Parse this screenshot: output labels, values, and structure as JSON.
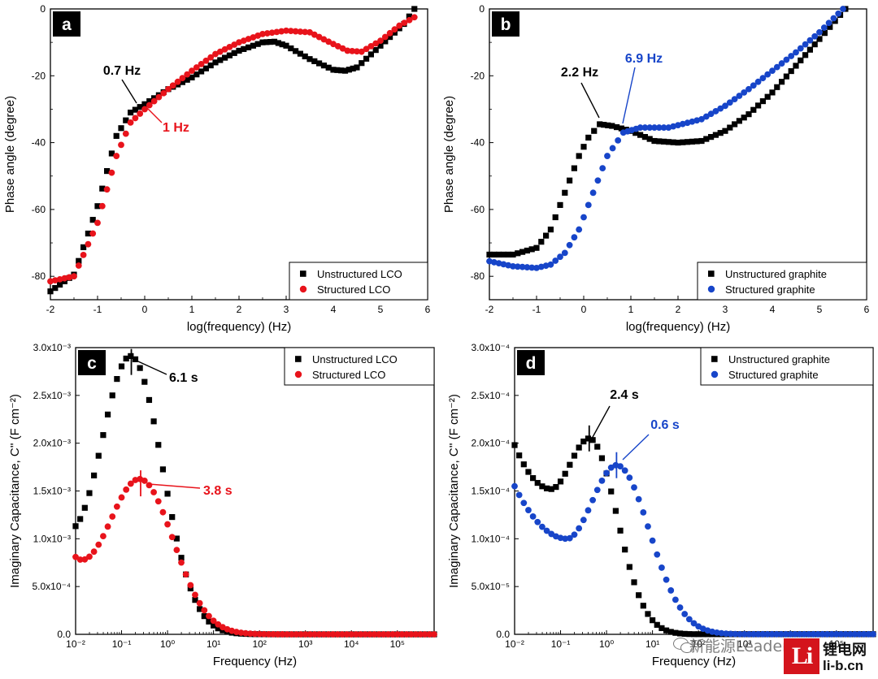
{
  "colors": {
    "black": "#000000",
    "red": "#e8131b",
    "blue": "#1745c9",
    "watermark_red": "#d4141c"
  },
  "chart_data": [
    {
      "panel": "a",
      "type": "scatter",
      "xlabel": "log(frequency) (Hz)",
      "ylabel": "Phase angle (degree)",
      "xlim": [
        -2,
        6
      ],
      "ylim": [
        -87,
        0
      ],
      "xticks": [
        -2,
        -1,
        0,
        1,
        2,
        3,
        4,
        5,
        6
      ],
      "xtick_labels": [
        "-2",
        "-1",
        "0",
        "1",
        "2",
        "3",
        "4",
        "5",
        "6"
      ],
      "yticks": [
        0,
        -20,
        -40,
        -60,
        -80
      ],
      "ytick_labels": [
        "0",
        "-20",
        "-40",
        "-60",
        "-80"
      ],
      "legend_position": "bottom-right",
      "series": [
        {
          "name": "Unstructured LCO",
          "marker": "square",
          "color": "black",
          "points": [
            [
              -2,
              -84.5
            ],
            [
              -1.5,
              -79.5
            ],
            [
              -1,
              -59
            ],
            [
              -0.6,
              -38
            ],
            [
              -0.3,
              -31
            ],
            [
              0,
              -28.5
            ],
            [
              0.5,
              -24
            ],
            [
              1,
              -20.5
            ],
            [
              1.5,
              -16
            ],
            [
              2,
              -12.5
            ],
            [
              2.5,
              -10
            ],
            [
              2.75,
              -9.8
            ],
            [
              3,
              -11
            ],
            [
              3.5,
              -15
            ],
            [
              4,
              -18.2
            ],
            [
              4.25,
              -18.5
            ],
            [
              4.5,
              -17.5
            ],
            [
              5,
              -11
            ],
            [
              5.5,
              -4.5
            ],
            [
              5.72,
              0
            ]
          ]
        },
        {
          "name": "Structured LCO",
          "marker": "circle",
          "color": "red",
          "points": [
            [
              -2,
              -81.5
            ],
            [
              -1.5,
              -80
            ],
            [
              -1,
              -64
            ],
            [
              -0.6,
              -44
            ],
            [
              -0.3,
              -34
            ],
            [
              0,
              -30
            ],
            [
              0.5,
              -24
            ],
            [
              1,
              -18.5
            ],
            [
              1.5,
              -13.5
            ],
            [
              2,
              -10
            ],
            [
              2.5,
              -7.5
            ],
            [
              3,
              -6.5
            ],
            [
              3.5,
              -7
            ],
            [
              4,
              -10.5
            ],
            [
              4.3,
              -12.5
            ],
            [
              4.6,
              -12.8
            ],
            [
              5,
              -9.5
            ],
            [
              5.4,
              -5
            ],
            [
              5.72,
              -2.5
            ]
          ]
        }
      ],
      "annotations": [
        {
          "text": "0.7 Hz",
          "color": "black",
          "at": [
            -0.16,
            -30.5
          ]
        },
        {
          "text": "1 Hz",
          "color": "red",
          "at": [
            0.0,
            -30.0
          ]
        }
      ]
    },
    {
      "panel": "b",
      "type": "scatter",
      "xlabel": "log(frequency) (Hz)",
      "ylabel": "Phase angle (degree)",
      "xlim": [
        -2,
        6
      ],
      "ylim": [
        -87,
        0
      ],
      "xticks": [
        -2,
        -1,
        0,
        1,
        2,
        3,
        4,
        5,
        6
      ],
      "xtick_labels": [
        "-2",
        "-1",
        "0",
        "1",
        "2",
        "3",
        "4",
        "5",
        "6"
      ],
      "yticks": [
        0,
        -20,
        -40,
        -60,
        -80
      ],
      "ytick_labels": [
        "0",
        "-20",
        "-40",
        "-60",
        "-80"
      ],
      "legend_position": "bottom-right",
      "series": [
        {
          "name": "Unstructured graphite",
          "marker": "square",
          "color": "black",
          "points": [
            [
              -2,
              -73.5
            ],
            [
              -1.5,
              -73.5
            ],
            [
              -1,
              -71.5
            ],
            [
              -0.7,
              -66
            ],
            [
              -0.4,
              -55
            ],
            [
              -0.1,
              -44
            ],
            [
              0.1,
              -38.5
            ],
            [
              0.34,
              -34.5
            ],
            [
              0.6,
              -35
            ],
            [
              1,
              -36.5
            ],
            [
              1.5,
              -39.5
            ],
            [
              2,
              -40
            ],
            [
              2.5,
              -39.5
            ],
            [
              3,
              -36.5
            ],
            [
              3.5,
              -31.5
            ],
            [
              4,
              -25
            ],
            [
              4.5,
              -17
            ],
            [
              5,
              -9
            ],
            [
              5.55,
              0
            ]
          ]
        },
        {
          "name": "Structured graphite",
          "marker": "circle",
          "color": "blue",
          "points": [
            [
              -2,
              -75.5
            ],
            [
              -1.5,
              -77
            ],
            [
              -1,
              -77.5
            ],
            [
              -0.7,
              -76.5
            ],
            [
              -0.4,
              -73
            ],
            [
              -0.1,
              -66
            ],
            [
              0.2,
              -55
            ],
            [
              0.5,
              -44
            ],
            [
              0.84,
              -37
            ],
            [
              1.2,
              -35.5
            ],
            [
              1.8,
              -35.5
            ],
            [
              2.5,
              -33
            ],
            [
              3,
              -29
            ],
            [
              3.5,
              -24
            ],
            [
              4,
              -18.5
            ],
            [
              4.5,
              -13
            ],
            [
              5,
              -7
            ],
            [
              5.5,
              0
            ]
          ]
        }
      ],
      "annotations": [
        {
          "text": "2.2 Hz",
          "color": "black",
          "at": [
            0.34,
            -34.5
          ]
        },
        {
          "text": "6.9 Hz",
          "color": "blue",
          "at": [
            0.84,
            -37.0
          ]
        }
      ]
    },
    {
      "panel": "c",
      "type": "scatter",
      "xscale": "log",
      "xlabel": "Frequency (Hz)",
      "ylabel": "Imaginary Capacitance, C'' (F cm⁻²)",
      "xlim": [
        0.01,
        631000
      ],
      "ylim": [
        0,
        0.003
      ],
      "xticks": [
        0.01,
        0.1,
        1,
        10,
        100,
        1000,
        10000,
        100000
      ],
      "xtick_labels": [
        "10⁻²",
        "10⁻¹",
        "10⁰",
        "10¹",
        "10²",
        "10³",
        "10⁴",
        "10⁵"
      ],
      "yticks": [
        0,
        0.0005,
        0.001,
        0.0015,
        0.002,
        0.0025,
        0.003
      ],
      "ytick_labels": [
        "0.0",
        "5.0x10⁻⁴",
        "1.0x10⁻³",
        "1.5x10⁻³",
        "2.0x10⁻³",
        "2.5x10⁻³",
        "3.0x10⁻³"
      ],
      "legend_position": "top-right",
      "series": [
        {
          "name": "Unstructured LCO",
          "marker": "square",
          "color": "black",
          "peak": {
            "f": 0.163,
            "y": 0.00285,
            "width_decades": 0.68,
            "baseline": 0.00055
          }
        },
        {
          "name": "Structured LCO",
          "marker": "circle",
          "color": "red",
          "peak": {
            "f": 0.26,
            "y": 0.00158,
            "width_decades": 0.72,
            "baseline": 0.00058
          }
        }
      ],
      "annotations": [
        {
          "text": "6.1 s",
          "color": "black",
          "at": [
            0.163,
            0.00285
          ]
        },
        {
          "text": "3.8 s",
          "color": "red",
          "at": [
            0.26,
            0.00158
          ]
        }
      ]
    },
    {
      "panel": "d",
      "type": "scatter",
      "xscale": "log",
      "xlabel": "Frequency (Hz)",
      "ylabel": "Imaginary Capacitance, C'' (F cm⁻²)",
      "xlim": [
        0.01,
        631000
      ],
      "ylim": [
        0,
        0.0003
      ],
      "xticks": [
        0.01,
        0.1,
        1,
        10,
        100,
        1000,
        10000,
        100000
      ],
      "xtick_labels": [
        "10⁻²",
        "10⁻¹",
        "10⁰",
        "10¹",
        "10²",
        "10³",
        "10⁴",
        "10⁵"
      ],
      "yticks": [
        0,
        5e-05,
        0.0001,
        0.00015,
        0.0002,
        0.00025,
        0.0003
      ],
      "ytick_labels": [
        "0.0",
        "5.0x10⁻⁵",
        "1.0x10⁻⁴",
        "1.5x10⁻⁴",
        "2.0x10⁻⁴",
        "2.5x10⁻⁴",
        "3.0x10⁻⁴"
      ],
      "legend_position": "top-right",
      "series": [
        {
          "name": "Unstructured graphite",
          "marker": "square",
          "color": "black",
          "peak": {
            "f": 0.42,
            "y": 0.000205,
            "width_decades": 0.5,
            "baseline": 0.000198,
            "min_f": 0.063,
            "min_y": 0.000152
          }
        },
        {
          "name": "Structured graphite",
          "marker": "circle",
          "color": "blue",
          "peak": {
            "f": 1.65,
            "y": 0.000177,
            "width_decades": 0.6,
            "baseline": 0.000155,
            "min_f": 0.14,
            "min_y": 0.0001
          }
        }
      ],
      "annotations": [
        {
          "text": "2.4 s",
          "color": "black",
          "at": [
            0.42,
            0.000205
          ]
        },
        {
          "text": "0.6 s",
          "color": "blue",
          "at": [
            1.65,
            0.000177
          ]
        }
      ]
    }
  ],
  "watermark": {
    "wechat_text": "新能源Leader",
    "logo_letters": "Li",
    "brand": "锂电网",
    "url": "li-b.cn"
  }
}
